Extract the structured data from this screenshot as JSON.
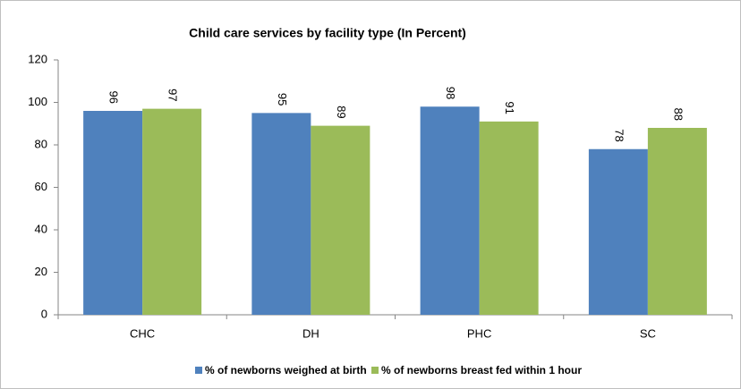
{
  "chart_data": {
    "type": "bar",
    "title": "Child care services by facility type (In Percent)",
    "categories": [
      "CHC",
      "DH",
      "PHC",
      "SC"
    ],
    "series": [
      {
        "name": "% of newborns weighed at birth",
        "color": "#4f81bd",
        "values": [
          96,
          95,
          98,
          78
        ]
      },
      {
        "name": "% of newborns breast fed within 1 hour",
        "color": "#9bbb59",
        "values": [
          97,
          89,
          91,
          88
        ]
      }
    ],
    "ylim": [
      0,
      120
    ],
    "yticks": [
      0,
      20,
      40,
      60,
      80,
      100,
      120
    ],
    "grid": false,
    "legend": "bottom"
  }
}
